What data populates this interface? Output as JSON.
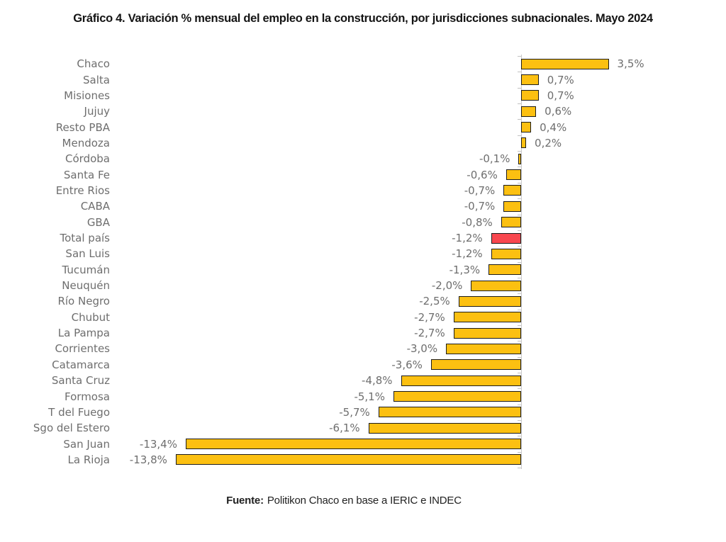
{
  "title": "Gráfico 4. Variación % mensual del empleo en la construcción, por jurisdicciones subnacionales. Mayo 2024",
  "footer": {
    "prefix": "Fuente:",
    "text": "Politikon Chaco en base a IERIC e INDEC"
  },
  "colors": {
    "bar": "#FCC011",
    "highlight_bar": "#F8474F",
    "bar_border": "#1c1c1c",
    "label_gray": "#6e6e6e",
    "axis_gray": "#c9c9c9"
  },
  "chart_data": {
    "type": "bar",
    "orientation": "horizontal",
    "title": "Gráfico 4. Variación % mensual del empleo en la construcción, por jurisdicciones subnacionales. Mayo 2024",
    "xlabel": "",
    "ylabel": "",
    "xlim": [
      -14.5,
      4.5
    ],
    "grid": false,
    "legend": false,
    "highlight_category": "Total país",
    "highlight_index": 11,
    "categories": [
      "Chaco",
      "Salta",
      "Misiones",
      "Jujuy",
      "Resto PBA",
      "Mendoza",
      "Córdoba",
      "Santa Fe",
      "Entre Rios",
      "CABA",
      "GBA",
      "Total país",
      "San Luis",
      "Tucumán",
      "Neuquén",
      "Río Negro",
      "Chubut",
      "La Pampa",
      "Corrientes",
      "Catamarca",
      "Santa Cruz",
      "Formosa",
      "T del Fuego",
      "Sgo del Estero",
      "San Juan",
      "La Rioja"
    ],
    "values": [
      3.5,
      0.7,
      0.7,
      0.6,
      0.4,
      0.2,
      -0.1,
      -0.6,
      -0.7,
      -0.7,
      -0.8,
      -1.2,
      -1.2,
      -1.3,
      -2.0,
      -2.5,
      -2.7,
      -2.7,
      -3.0,
      -3.6,
      -4.8,
      -5.1,
      -5.7,
      -6.1,
      -13.4,
      -13.8
    ],
    "value_labels": [
      "3,5%",
      "0,7%",
      "0,7%",
      "0,6%",
      "0,4%",
      "0,2%",
      "-0,1%",
      "-0,6%",
      "-0,7%",
      "-0,7%",
      "-0,8%",
      "-1,2%",
      "-1,2%",
      "-1,3%",
      "-2,0%",
      "-2,5%",
      "-2,7%",
      "-2,7%",
      "-3,0%",
      "-3,6%",
      "-4,8%",
      "-5,1%",
      "-5,7%",
      "-6,1%",
      "-13,4%",
      "-13,8%"
    ]
  }
}
